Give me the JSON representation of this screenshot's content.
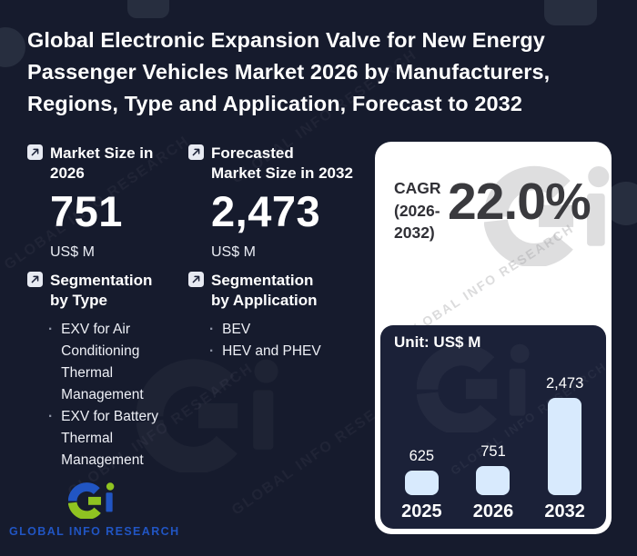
{
  "title_lines": [
    "Global Electronic Expansion Valve for New Energy",
    "Passenger Vehicles Market 2026 by Manufacturers,",
    "Regions, Type and Application, Forecast to 2032"
  ],
  "stats": [
    {
      "label_lines": [
        "Market Size in",
        "2026"
      ],
      "value": "751",
      "unit": "US$ M"
    },
    {
      "label_lines": [
        "Forecasted",
        "Market Size in 2032"
      ],
      "value": "2,473",
      "unit": "US$ M"
    }
  ],
  "cagr": {
    "label_lines": [
      "CAGR",
      "(2026-",
      "2032)"
    ],
    "value": "22.0%"
  },
  "segmentation_by_type": {
    "heading_lines": [
      "Segmentation",
      "by Type"
    ],
    "items": [
      "EXV for Air Conditioning Thermal Management",
      "EXV for Battery Thermal Management"
    ]
  },
  "segmentation_by_application": {
    "heading_lines": [
      "Segmentation",
      "by Application"
    ],
    "items": [
      "BEV",
      "HEV and PHEV"
    ]
  },
  "chart_data": {
    "type": "bar",
    "unit_label": "Unit: US$ M",
    "categories": [
      "2025",
      "2026",
      "2032"
    ],
    "values": [
      625,
      751,
      2473
    ],
    "value_labels": [
      "625",
      "751",
      "2,473"
    ],
    "ylabel": "US$ M",
    "ylim": [
      0,
      2600
    ],
    "bar_color": "#d8eafd",
    "grid": false,
    "legend": false
  },
  "logo": {
    "brand": "GLOBAL INFO RESEARCH"
  },
  "watermark": {
    "text": "GLOBAL INFO RESEARCH"
  },
  "colors": {
    "background": "#161b2d",
    "chart_panel": "#1b2138",
    "card": "#ffffff",
    "bar": "#d8eafd",
    "accent_blue": "#2155c3",
    "accent_green": "#8fc321",
    "dark_text": "#3a3a3e",
    "light_text": "#ffffff"
  }
}
